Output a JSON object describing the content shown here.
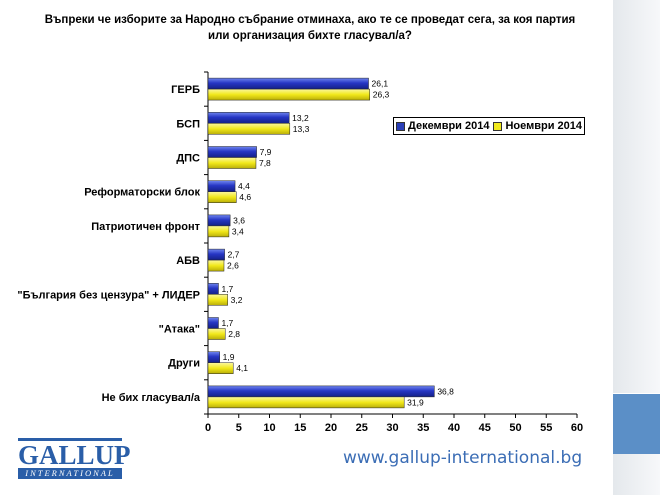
{
  "title_lines": [
    "Въпреки че изборите за Народно събрание отминаха, ако те се проведат сега, за коя партия",
    "или организация бихте гласувал/а?"
  ],
  "chart_data": {
    "type": "bar",
    "orientation": "horizontal",
    "categories": [
      "ГЕРБ",
      "БСП",
      "ДПС",
      "Реформаторски блок",
      "Патриотичен фронт",
      "АБВ",
      "\"България без цензура\" + ЛИДЕР",
      "\"Атака\"",
      "Други",
      "Не бих гласувал/а"
    ],
    "series": [
      {
        "name": "Декември 2014",
        "color": "#2a3fb8",
        "values": [
          26.1,
          13.2,
          7.9,
          4.4,
          3.6,
          2.7,
          1.7,
          1.7,
          1.9,
          36.8
        ],
        "labels": [
          "26,1",
          "13,2",
          "7,9",
          "4,4",
          "3,6",
          "2,7",
          "1,7",
          "1,7",
          "1,9",
          "36,8"
        ]
      },
      {
        "name": "Ноември 2014",
        "color": "#f2ea1c",
        "values": [
          26.3,
          13.3,
          7.8,
          4.6,
          3.4,
          2.6,
          3.2,
          2.8,
          4.1,
          31.9
        ],
        "labels": [
          "26,3",
          "13,3",
          "7,8",
          "4,6",
          "3,4",
          "2,6",
          "3,2",
          "2,8",
          "4,1",
          "31,9"
        ]
      }
    ],
    "xlim": [
      0,
      60
    ],
    "xticks": [
      0,
      5,
      10,
      15,
      20,
      25,
      30,
      35,
      40,
      45,
      50,
      55,
      60
    ],
    "grid": false,
    "legend_position": "top-right"
  },
  "branding": {
    "logo_word": "GALLUP",
    "logo_sub": "INTERNATIONAL",
    "url": "www.gallup-international.bg",
    "accent_color": "#5b8fc7"
  }
}
